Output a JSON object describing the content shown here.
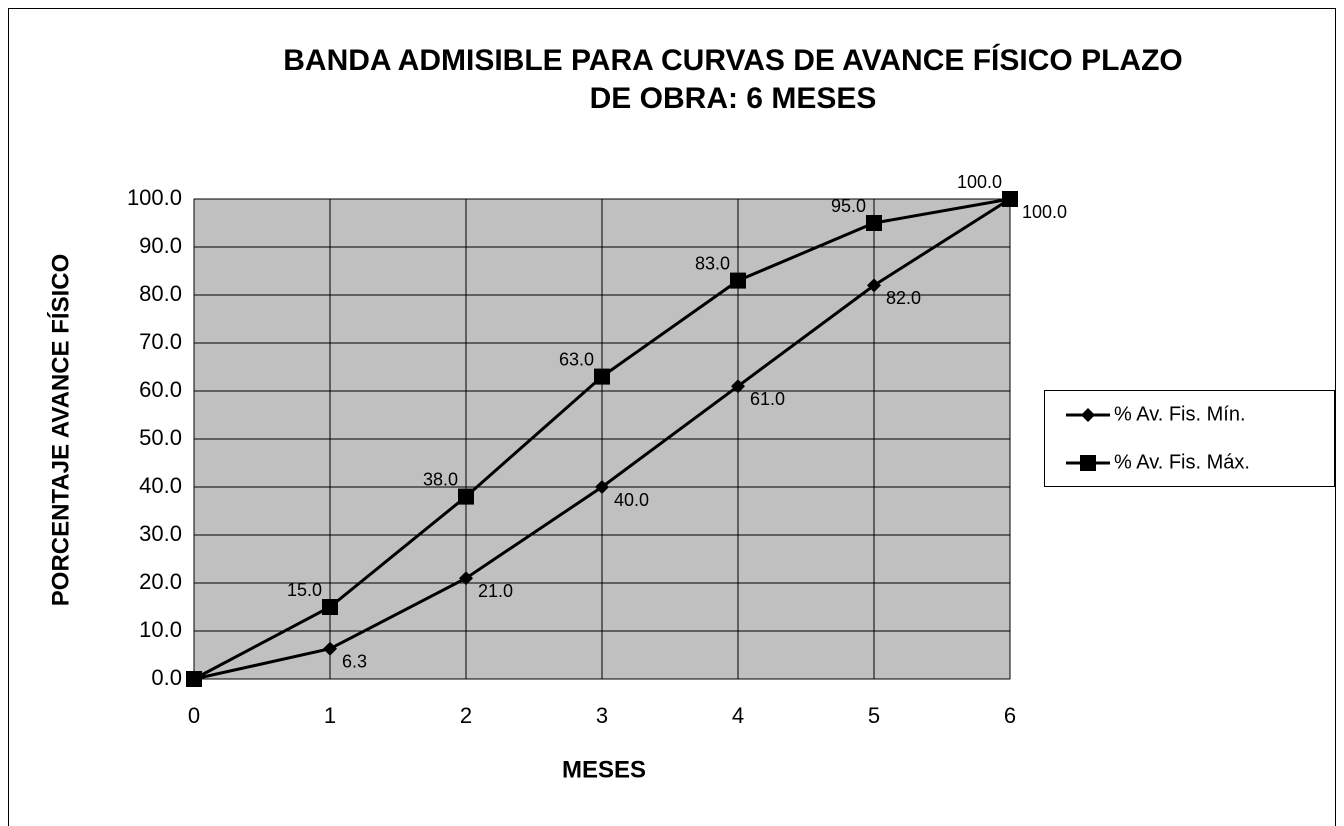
{
  "chart_data": {
    "type": "line",
    "title": [
      "BANDA ADMISIBLE PARA CURVAS DE AVANCE FÍSICO  PLAZO",
      "DE OBRA: 6 MESES"
    ],
    "x_label": "MESES",
    "y_label": "PORCENTAJE AVANCE FÍSICO",
    "x": [
      0,
      1,
      2,
      3,
      4,
      5,
      6
    ],
    "xlim": [
      0,
      6
    ],
    "xticks": [
      0,
      1,
      2,
      3,
      4,
      5,
      6
    ],
    "ylim": [
      0,
      100
    ],
    "yticks": [
      {
        "value": 0,
        "label": "0.0"
      },
      {
        "value": 10,
        "label": "10.0"
      },
      {
        "value": 20,
        "label": "20.0"
      },
      {
        "value": 30,
        "label": "30.0"
      },
      {
        "value": 40,
        "label": "40.0"
      },
      {
        "value": 50,
        "label": "50.0"
      },
      {
        "value": 60,
        "label": "60.0"
      },
      {
        "value": 70,
        "label": "70.0"
      },
      {
        "value": 80,
        "label": "80.0"
      },
      {
        "value": 90,
        "label": "90.0"
      },
      {
        "value": 100,
        "label": "100.0"
      }
    ],
    "grid": true,
    "legend": "right",
    "series": [
      {
        "name": "% Av. Fis. Mín.",
        "color": "#000000",
        "marker": "diamond",
        "values": [
          0,
          6.3,
          21,
          40,
          61,
          82,
          100
        ],
        "value_labels": [
          null,
          "6.3",
          "21.0",
          "40.0",
          "61.0",
          "82.0",
          "100.0"
        ]
      },
      {
        "name": "% Av. Fis. Máx.",
        "color": "#000000",
        "marker": "square",
        "values": [
          0,
          15,
          38,
          63,
          83,
          95,
          100
        ],
        "value_labels": [
          null,
          "15.0",
          "38.0",
          "63.0",
          "83.0",
          "95.0",
          "100.0"
        ]
      }
    ]
  }
}
